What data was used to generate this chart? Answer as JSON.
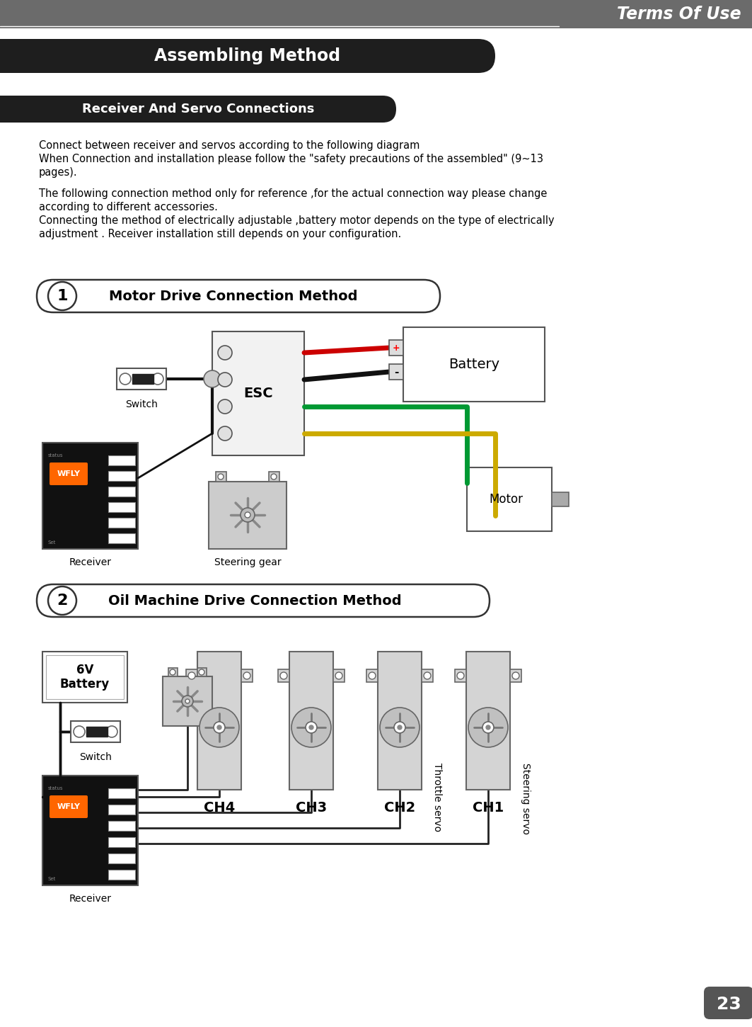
{
  "page_number": "23",
  "header_bg": "#6b6b6b",
  "header_text": "Terms Of Use",
  "header_text_color": "#ffffff",
  "assembling_bg": "#1e1e1e",
  "assembling_text": "Assembling Method",
  "assembling_text_color": "#ffffff",
  "section1_title": "Receiver And Servo Connections",
  "section1_bg": "#1e1e1e",
  "section1_text_color": "#ffffff",
  "body_bg": "#ffffff",
  "body_text_color": "#000000",
  "para1_line1": "Connect between receiver and servos according to the following diagram",
  "para1_line2": "When Connection and installation please follow the \"safety precautions of the assembled\" (9~13",
  "para1_line3": "pages).",
  "para2_line1": "The following connection method only for reference ,for the actual connection way please change",
  "para2_line2": "according to different accessories.",
  "para2_line3": "Connecting the method of electrically adjustable ,battery motor depends on the type of electrically",
  "para2_line4": "adjustment . Receiver installation still depends on your configuration.",
  "method1_label": "1",
  "method1_title": "Motor Drive Connection Method",
  "method2_label": "2",
  "method2_title": "Oil Machine Drive Connection Method",
  "esc_label": "ESC",
  "battery_label": "Battery",
  "switch_label": "Switch",
  "receiver_label": "Receiver",
  "steering_gear_label": "Steering gear",
  "motor_label": "Motor",
  "battery2_label": "6V\nBattery",
  "switch2_label": "Switch",
  "receiver2_label": "Receiver",
  "ch1_label": "CH1",
  "ch2_label": "CH2",
  "ch3_label": "CH3",
  "ch4_label": "CH4",
  "throttle_servo_label": "Throttle servo",
  "steering_servo_label": "Steering servo",
  "wire_red": "#cc0000",
  "wire_black": "#111111",
  "wire_green": "#009933",
  "wire_yellow": "#ccaa00"
}
